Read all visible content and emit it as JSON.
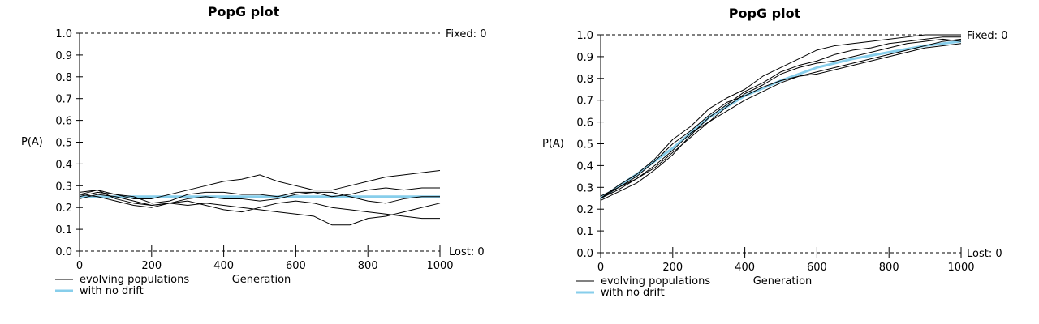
{
  "chart_data": [
    {
      "type": "line",
      "title": "PopG plot",
      "xlabel": "Generation",
      "ylabel": "P(A)",
      "xlim": [
        0,
        1000
      ],
      "ylim": [
        0,
        1
      ],
      "x_ticks": [
        "0",
        "200",
        "400",
        "600",
        "800",
        "1000"
      ],
      "y_ticks": [
        "0.0",
        "0.1",
        "0.2",
        "0.3",
        "0.4",
        "0.5",
        "0.6",
        "0.7",
        "0.8",
        "0.9",
        "1.0"
      ],
      "fixed_label": "Fixed: 0",
      "lost_label": "Lost: 0",
      "grid": false,
      "legend": {
        "placement": "bottom-left",
        "entries": [
          {
            "label": "evolving populations",
            "color": "#000000"
          },
          {
            "label": "with no drift",
            "color": "#87CEEB"
          }
        ]
      },
      "no_drift": {
        "x": [
          0,
          100,
          200,
          300,
          400,
          500,
          600,
          700,
          800,
          900,
          1000
        ],
        "y": [
          0.25,
          0.25,
          0.25,
          0.25,
          0.25,
          0.25,
          0.25,
          0.25,
          0.25,
          0.25,
          0.25
        ]
      },
      "series": [
        {
          "x": [
            0,
            50,
            100,
            150,
            200,
            250,
            300,
            350,
            400,
            450,
            500,
            550,
            600,
            650,
            700,
            750,
            800,
            850,
            900,
            950,
            1000
          ],
          "y": [
            0.26,
            0.28,
            0.26,
            0.24,
            0.24,
            0.26,
            0.28,
            0.3,
            0.32,
            0.33,
            0.35,
            0.32,
            0.3,
            0.28,
            0.28,
            0.3,
            0.32,
            0.34,
            0.35,
            0.36,
            0.37
          ]
        },
        {
          "x": [
            0,
            50,
            100,
            150,
            200,
            250,
            300,
            350,
            400,
            450,
            500,
            550,
            600,
            650,
            700,
            750,
            800,
            850,
            900,
            950,
            1000
          ],
          "y": [
            0.25,
            0.27,
            0.26,
            0.25,
            0.22,
            0.23,
            0.26,
            0.27,
            0.27,
            0.26,
            0.26,
            0.25,
            0.27,
            0.27,
            0.25,
            0.26,
            0.28,
            0.29,
            0.28,
            0.29,
            0.29
          ]
        },
        {
          "x": [
            0,
            50,
            100,
            150,
            200,
            250,
            300,
            350,
            400,
            450,
            500,
            550,
            600,
            650,
            700,
            750,
            800,
            850,
            900,
            950,
            1000
          ],
          "y": [
            0.24,
            0.26,
            0.25,
            0.23,
            0.21,
            0.22,
            0.21,
            0.22,
            0.21,
            0.2,
            0.19,
            0.18,
            0.17,
            0.16,
            0.12,
            0.12,
            0.15,
            0.16,
            0.18,
            0.2,
            0.22
          ]
        },
        {
          "x": [
            0,
            50,
            100,
            150,
            200,
            250,
            300,
            350,
            400,
            450,
            500,
            550,
            600,
            650,
            700,
            750,
            800,
            850,
            900,
            950,
            1000
          ],
          "y": [
            0.27,
            0.28,
            0.24,
            0.22,
            0.21,
            0.22,
            0.23,
            0.21,
            0.19,
            0.18,
            0.2,
            0.22,
            0.23,
            0.22,
            0.2,
            0.19,
            0.18,
            0.17,
            0.16,
            0.15,
            0.15
          ]
        },
        {
          "x": [
            0,
            50,
            100,
            150,
            200,
            250,
            300,
            350,
            400,
            450,
            500,
            550,
            600,
            650,
            700,
            750,
            800,
            850,
            900,
            950,
            1000
          ],
          "y": [
            0.26,
            0.25,
            0.23,
            0.21,
            0.2,
            0.22,
            0.24,
            0.25,
            0.24,
            0.24,
            0.23,
            0.24,
            0.26,
            0.27,
            0.27,
            0.25,
            0.23,
            0.22,
            0.24,
            0.25,
            0.25
          ]
        }
      ]
    },
    {
      "type": "line",
      "title": "PopG plot",
      "xlabel": "Generation",
      "ylabel": "P(A)",
      "xlim": [
        0,
        1000
      ],
      "ylim": [
        0,
        1
      ],
      "x_ticks": [
        "0",
        "200",
        "400",
        "600",
        "800",
        "1000"
      ],
      "y_ticks": [
        "0.0",
        "0.1",
        "0.2",
        "0.3",
        "0.4",
        "0.5",
        "0.6",
        "0.7",
        "0.8",
        "0.9",
        "1.0"
      ],
      "fixed_label": "Fixed: 0",
      "lost_label": "Lost: 0",
      "grid": false,
      "legend": {
        "placement": "bottom-left",
        "entries": [
          {
            "label": "evolving populations",
            "color": "#000000"
          },
          {
            "label": "with no drift",
            "color": "#87CEEB"
          }
        ]
      },
      "no_drift": {
        "x": [
          0,
          100,
          200,
          300,
          400,
          500,
          600,
          700,
          800,
          900,
          1000
        ],
        "y": [
          0.25,
          0.36,
          0.48,
          0.62,
          0.72,
          0.79,
          0.85,
          0.89,
          0.92,
          0.95,
          0.97
        ]
      },
      "series": [
        {
          "x": [
            0,
            50,
            100,
            150,
            200,
            250,
            300,
            350,
            400,
            450,
            500,
            550,
            600,
            650,
            700,
            750,
            800,
            850,
            900,
            950,
            1000
          ],
          "y": [
            0.25,
            0.31,
            0.36,
            0.43,
            0.52,
            0.58,
            0.66,
            0.71,
            0.75,
            0.81,
            0.85,
            0.89,
            0.93,
            0.95,
            0.96,
            0.97,
            0.98,
            0.99,
            1.0,
            1.0,
            1.0
          ]
        },
        {
          "x": [
            0,
            50,
            100,
            150,
            200,
            250,
            300,
            350,
            400,
            450,
            500,
            550,
            600,
            650,
            700,
            750,
            800,
            850,
            900,
            950,
            1000
          ],
          "y": [
            0.24,
            0.28,
            0.32,
            0.38,
            0.45,
            0.54,
            0.62,
            0.68,
            0.74,
            0.78,
            0.83,
            0.86,
            0.88,
            0.91,
            0.93,
            0.94,
            0.96,
            0.97,
            0.98,
            0.99,
            0.99
          ]
        },
        {
          "x": [
            0,
            50,
            100,
            150,
            200,
            250,
            300,
            350,
            400,
            450,
            500,
            550,
            600,
            650,
            700,
            750,
            800,
            850,
            900,
            950,
            1000
          ],
          "y": [
            0.25,
            0.29,
            0.34,
            0.4,
            0.47,
            0.55,
            0.6,
            0.65,
            0.7,
            0.74,
            0.78,
            0.81,
            0.83,
            0.85,
            0.87,
            0.89,
            0.91,
            0.93,
            0.95,
            0.97,
            0.98
          ]
        },
        {
          "x": [
            0,
            50,
            100,
            150,
            200,
            250,
            300,
            350,
            400,
            450,
            500,
            550,
            600,
            650,
            700,
            750,
            800,
            850,
            900,
            950,
            1000
          ],
          "y": [
            0.26,
            0.3,
            0.35,
            0.42,
            0.5,
            0.56,
            0.63,
            0.69,
            0.72,
            0.76,
            0.79,
            0.81,
            0.82,
            0.84,
            0.86,
            0.88,
            0.9,
            0.92,
            0.94,
            0.95,
            0.96
          ]
        },
        {
          "x": [
            0,
            50,
            100,
            150,
            200,
            250,
            300,
            350,
            400,
            450,
            500,
            550,
            600,
            650,
            700,
            750,
            800,
            850,
            900,
            950,
            1000
          ],
          "y": [
            0.25,
            0.3,
            0.34,
            0.39,
            0.46,
            0.53,
            0.6,
            0.67,
            0.73,
            0.77,
            0.82,
            0.85,
            0.87,
            0.88,
            0.9,
            0.92,
            0.94,
            0.96,
            0.97,
            0.98,
            0.97
          ]
        }
      ]
    }
  ]
}
